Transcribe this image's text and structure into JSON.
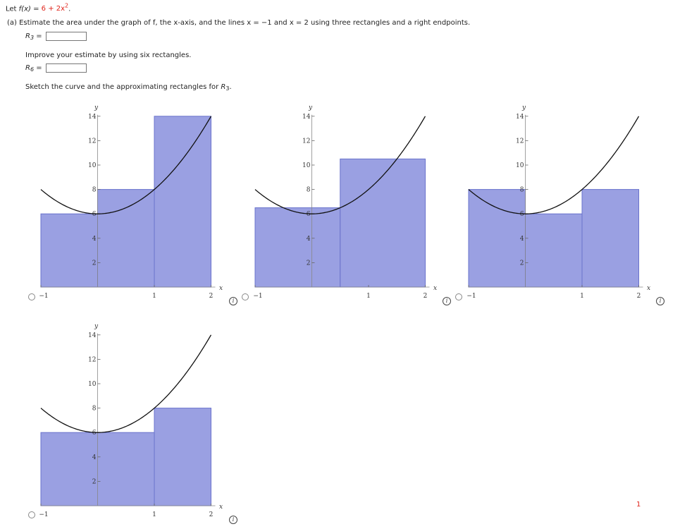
{
  "problem": {
    "intro_prefix": "Let ",
    "fx": "f(x)",
    "eq_sign": " = ",
    "fx_rhs": "6 + 2x",
    "exp": "2",
    "period": ".",
    "part_a": "(a)  Estimate the area under the graph of f, the x-axis, and the lines x = −1 and x = 2 using three rectangles and a right endpoints.",
    "r3_label": "R",
    "r3_sub": "3",
    "eq": "=",
    "r3_value": "",
    "improve": "Improve your estimate by using six rectangles.",
    "r6_label": "R",
    "r6_sub": "6",
    "r6_value": "",
    "sketch_prefix": "Sketch the curve and the approximating rectangles for ",
    "sketch_var": "R",
    "sketch_sub": "3",
    "sketch_end": "."
  },
  "page_number": "1",
  "chart_data": [
    {
      "type": "area",
      "function": "6 + 2x^2",
      "xlim": [
        -1,
        2
      ],
      "ylim": [
        0,
        14
      ],
      "xlabel": "x",
      "ylabel": "y",
      "x_ticks": [
        -1,
        1,
        2
      ],
      "y_ticks": [
        2,
        4,
        6,
        8,
        10,
        12,
        14
      ],
      "rectangles": [
        {
          "x0": -1,
          "x1": 0,
          "h": 6
        },
        {
          "x0": 0,
          "x1": 1,
          "h": 8
        },
        {
          "x0": 1,
          "x1": 2,
          "h": 14
        }
      ]
    },
    {
      "type": "area",
      "function": "6 + 2x^2",
      "xlim": [
        -1,
        2
      ],
      "ylim": [
        0,
        14
      ],
      "xlabel": "x",
      "ylabel": "y",
      "x_ticks": [
        -1,
        1,
        2
      ],
      "y_ticks": [
        2,
        4,
        6,
        8,
        10,
        12,
        14
      ],
      "rectangles": [
        {
          "x0": -1,
          "x1": 0.5,
          "h": 6.5
        },
        {
          "x0": 0.5,
          "x1": 2,
          "h": 10.5
        }
      ]
    },
    {
      "type": "area",
      "function": "6 + 2x^2",
      "xlim": [
        -1,
        2
      ],
      "ylim": [
        0,
        14
      ],
      "xlabel": "x",
      "ylabel": "y",
      "x_ticks": [
        -1,
        1,
        2
      ],
      "y_ticks": [
        2,
        4,
        6,
        8,
        10,
        12,
        14
      ],
      "rectangles": [
        {
          "x0": -1,
          "x1": 0,
          "h": 8
        },
        {
          "x0": 0,
          "x1": 1,
          "h": 6
        },
        {
          "x0": 1,
          "x1": 2,
          "h": 8
        }
      ]
    },
    {
      "type": "area",
      "function": "6 + 2x^2",
      "xlim": [
        -1,
        2
      ],
      "ylim": [
        0,
        14
      ],
      "xlabel": "x",
      "ylabel": "y",
      "x_ticks": [
        -1,
        1,
        2
      ],
      "y_ticks": [
        2,
        4,
        6,
        8,
        10,
        12,
        14
      ],
      "rectangles": [
        {
          "x0": -1,
          "x1": 1,
          "h": 6
        },
        {
          "x0": 1,
          "x1": 2,
          "h": 8
        }
      ]
    }
  ]
}
